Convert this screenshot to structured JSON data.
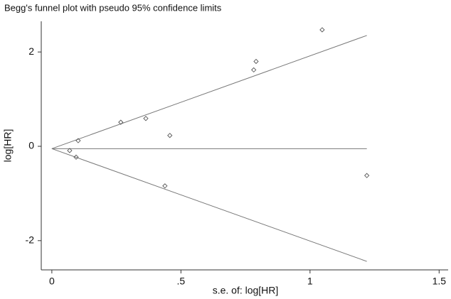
{
  "chart_data": {
    "type": "funnel",
    "title": "Begg's funnel plot with pseudo 95% confidence limits",
    "x_label": "s.e. of: log[HR]",
    "y_label": "log[HR]",
    "points": {
      "color": "#555555",
      "x": [
        0.069,
        0.094,
        0.102,
        0.267,
        0.364,
        0.438,
        0.457,
        0.782,
        0.791,
        1.047,
        1.22
      ],
      "values": [
        -0.09,
        -0.23,
        0.12,
        0.51,
        0.59,
        -0.84,
        0.23,
        1.62,
        1.8,
        2.47,
        -0.62
      ]
    },
    "lines": [
      {
        "color": "#777777",
        "x": [
          0,
          1.22
        ],
        "values": [
          -0.05,
          -0.05
        ]
      },
      {
        "color": "#777777",
        "x": [
          0,
          1.22
        ],
        "values": [
          -0.05,
          2.35
        ]
      },
      {
        "color": "#777777",
        "x": [
          0,
          1.22
        ],
        "values": [
          -0.05,
          -2.44
        ]
      }
    ],
    "xlim": [
      -0.041,
      1.535
    ],
    "ylim": [
      -2.62,
      2.65
    ],
    "xticks": [
      0,
      {
        "value": 0.5,
        "label": ".5"
      },
      1,
      1.5
    ],
    "yticks": [
      -2,
      0,
      2
    ]
  }
}
